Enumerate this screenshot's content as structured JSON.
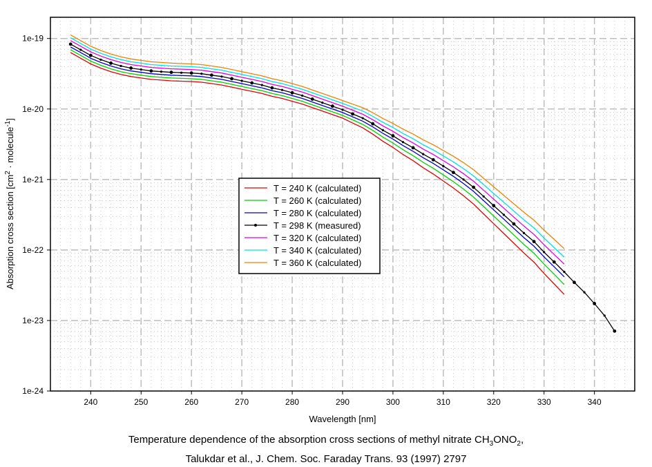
{
  "chart_data": {
    "type": "line",
    "title": "",
    "xlabel": "Wavelength [nm]",
    "ylabel": "Absorption cross section [cm",
    "ylabel_sup": "2",
    "ylabel_mid": " · molecule",
    "ylabel_sup2": "-1",
    "ylabel_end": "]",
    "xlim": [
      232,
      348
    ],
    "ylim": [
      1e-24,
      2e-19
    ],
    "yscale": "log",
    "grid": true,
    "legend_position": "center-left",
    "x_ticks": [
      240,
      250,
      260,
      270,
      280,
      290,
      300,
      310,
      320,
      330,
      340
    ],
    "x_tick_labels": [
      "240",
      "250",
      "260",
      "270",
      "280",
      "290",
      "300",
      "310",
      "320",
      "330",
      "340"
    ],
    "y_ticks": [
      1e-19,
      1e-20,
      1e-21,
      1e-22,
      1e-23,
      1e-24
    ],
    "y_tick_labels": [
      "1e-19",
      "1e-20",
      "1e-21",
      "1e-22",
      "1e-23",
      "1e-24"
    ],
    "x": [
      236,
      238,
      240,
      242,
      244,
      246,
      248,
      250,
      252,
      254,
      256,
      258,
      260,
      262,
      264,
      266,
      268,
      270,
      272,
      274,
      276,
      278,
      280,
      282,
      284,
      286,
      288,
      290,
      292,
      294,
      296,
      298,
      300,
      302,
      304,
      306,
      308,
      310,
      312,
      314,
      316,
      318,
      320,
      322,
      324,
      326,
      328,
      330,
      332,
      334
    ],
    "measured_x": [
      236,
      238,
      240,
      242,
      244,
      246,
      248,
      250,
      252,
      254,
      256,
      258,
      260,
      262,
      264,
      266,
      268,
      270,
      272,
      274,
      276,
      278,
      280,
      282,
      284,
      286,
      288,
      290,
      292,
      294,
      296,
      298,
      300,
      302,
      304,
      306,
      308,
      310,
      312,
      314,
      316,
      318,
      320,
      322,
      324,
      326,
      328,
      330,
      332,
      334,
      336,
      338,
      340,
      342,
      344
    ],
    "series": [
      {
        "name": "T = 240 K (calculated)",
        "color": "#e00000",
        "marker": false,
        "offset_log": -0.12,
        "tail_extra": -0.2
      },
      {
        "name": "T = 260 K (calculated)",
        "color": "#00d000",
        "marker": false,
        "offset_log": -0.08,
        "tail_extra": -0.1
      },
      {
        "name": "T = 280 K (calculated)",
        "color": "#0000c8",
        "marker": false,
        "offset_log": -0.04,
        "tail_extra": -0.03
      },
      {
        "name": "T = 298 K (measured)",
        "color": "#000000",
        "marker": true,
        "offset_log": 0,
        "tail_extra": 0
      },
      {
        "name": "T = 320 K (calculated)",
        "color": "#e000e0",
        "marker": false,
        "offset_log": 0.05,
        "tail_extra": 0.06
      },
      {
        "name": "T = 340 K (calculated)",
        "color": "#00e0e0",
        "marker": false,
        "offset_log": 0.09,
        "tail_extra": 0.12
      },
      {
        "name": "T = 360 K (calculated)",
        "color": "#f08000",
        "marker": false,
        "offset_log": 0.13,
        "tail_extra": 0.2
      }
    ],
    "measured_log10": [
      -19.08,
      -19.16,
      -19.24,
      -19.3,
      -19.35,
      -19.39,
      -19.42,
      -19.44,
      -19.46,
      -19.47,
      -19.48,
      -19.485,
      -19.49,
      -19.5,
      -19.52,
      -19.54,
      -19.57,
      -19.6,
      -19.63,
      -19.66,
      -19.7,
      -19.73,
      -19.77,
      -19.81,
      -19.86,
      -19.91,
      -19.96,
      -20.01,
      -20.07,
      -20.13,
      -20.21,
      -20.3,
      -20.38,
      -20.47,
      -20.55,
      -20.64,
      -20.72,
      -20.81,
      -20.9,
      -21.0,
      -21.11,
      -21.24,
      -21.37,
      -21.5,
      -21.63,
      -21.76,
      -21.88,
      -22.03,
      -22.17,
      -22.31,
      -22.46,
      -22.6,
      -22.76,
      -22.93,
      -23.15
    ],
    "caption_line1_pre": "Temperature dependence of the absorption cross sections of methyl nitrate CH",
    "caption_sub1": "3",
    "caption_mid": "ONO",
    "caption_sub2": "2",
    "caption_end": ",",
    "caption_line2": "Talukdar et al., J. Chem. Soc. Faraday Trans. 93 (1997) 2797"
  }
}
